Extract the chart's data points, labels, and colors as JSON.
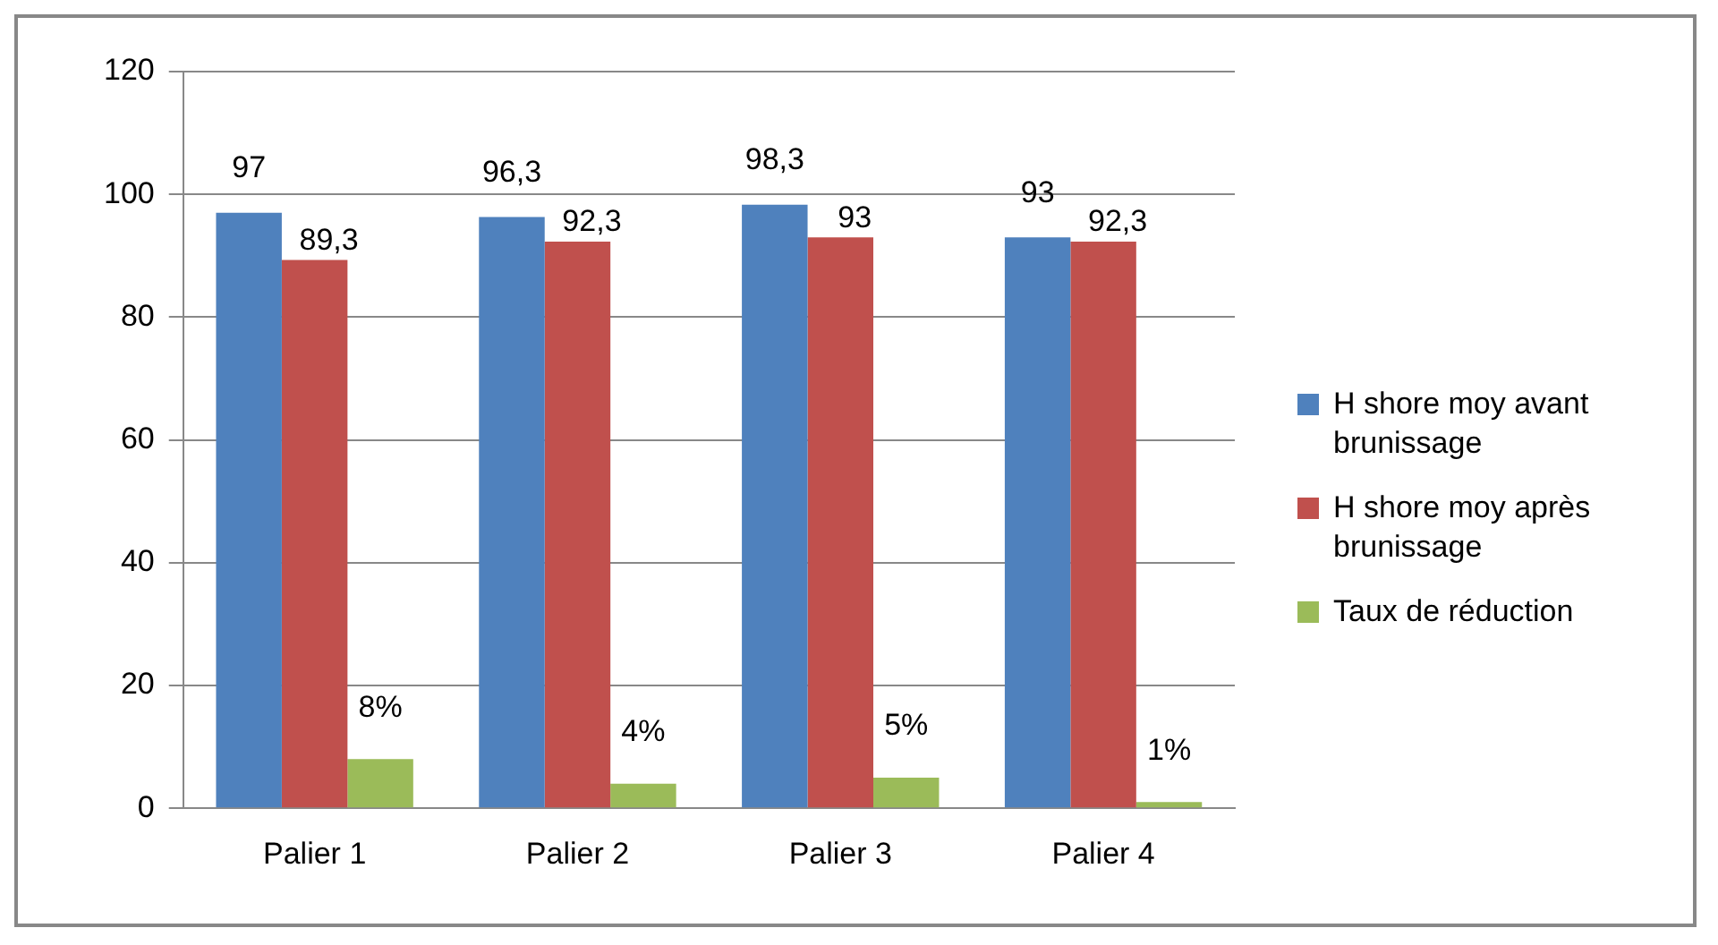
{
  "chart_data": {
    "type": "bar",
    "categories": [
      "Palier 1",
      "Palier 2",
      "Palier 3",
      "Palier 4"
    ],
    "series": [
      {
        "name": "H shore moy avant brunissage",
        "color": "#4f81bd",
        "values": [
          97,
          96.3,
          98.3,
          93
        ],
        "value_labels": [
          "97",
          "96,3",
          "98,3",
          "93"
        ]
      },
      {
        "name": "H shore moy après brunissage",
        "color": "#c0504d",
        "values": [
          89.3,
          92.3,
          93,
          92.3
        ],
        "value_labels": [
          "89,3",
          "92,3",
          "93",
          "92,3"
        ]
      },
      {
        "name": "Taux de réduction",
        "color": "#9bbb59",
        "values": [
          8,
          4,
          5,
          1
        ],
        "value_labels": [
          "8%",
          "4%",
          "5%",
          "1%"
        ]
      }
    ],
    "ylim": [
      0,
      120
    ],
    "yticks": [
      0,
      20,
      40,
      60,
      80,
      100,
      120
    ],
    "grid": "y",
    "legend": "right"
  }
}
